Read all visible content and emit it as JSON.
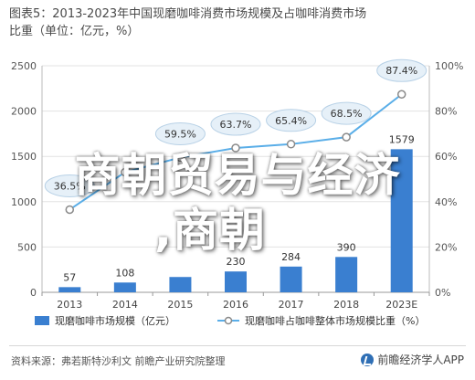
{
  "title_line1": "图表5：2013-2023年中国现磨咖啡消费市场规模及占咖啡消费市场",
  "title_line2": "比重（单位：亿元，%）",
  "overlay_line1": "商朝贸易与经济",
  "overlay_line2": ",商朝",
  "source": "资料来源：弗若斯特沙利文 前瞻产业研究院整理",
  "brand": "前瞻经济学人APP",
  "chart_data": {
    "type": "bar+line",
    "categories": [
      "2013",
      "2014",
      "2015",
      "2016",
      "2017",
      "2018",
      "2023E"
    ],
    "series": [
      {
        "name": "现磨咖啡市场规模（亿元）",
        "kind": "bar",
        "axis": "left",
        "color": "#3a7fd0",
        "values": [
          57,
          108,
          169,
          230,
          284,
          390,
          1579
        ],
        "labels": [
          "57",
          "108",
          "",
          "230",
          "284",
          "390",
          "1579"
        ]
      },
      {
        "name": "现磨咖啡占咖啡整体市场规模比重（%）",
        "kind": "line",
        "axis": "right",
        "color": "#5aaee8",
        "values": [
          36.5,
          53.0,
          59.5,
          63.7,
          65.4,
          68.5,
          87.4
        ],
        "labels": [
          "36.5%",
          "",
          "59.5%",
          "63.7%",
          "65.4%",
          "68.5%",
          "87.4%"
        ]
      }
    ],
    "y_left": {
      "min": 0,
      "max": 2500,
      "ticks": [
        "0",
        "500",
        "1000",
        "1500",
        "2000",
        "2500"
      ]
    },
    "y_right": {
      "min": 0,
      "max": 100,
      "ticks": [
        "0%",
        "20%",
        "40%",
        "60%",
        "80%",
        "100%"
      ]
    },
    "grid": true,
    "legend_position": "bottom"
  }
}
